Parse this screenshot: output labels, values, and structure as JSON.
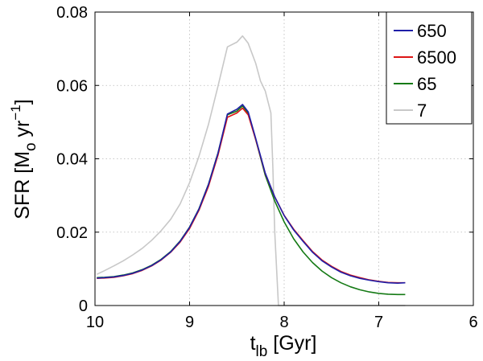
{
  "chart_data": {
    "type": "line",
    "title": "",
    "xlabel": {
      "base": "t",
      "sub": "lb",
      "rest": " [Gyr]"
    },
    "ylabel": {
      "pre": "SFR [M",
      "sub": "o",
      "mid": " yr",
      "sup": "−1",
      "post": "]"
    },
    "xlim": [
      10,
      6
    ],
    "ylim": [
      0,
      0.08
    ],
    "x_reversed": true,
    "xticks": [
      10,
      9,
      8,
      7,
      6
    ],
    "xtick_labels": [
      "10",
      "9",
      "8",
      "7",
      "6"
    ],
    "yticks": [
      0,
      0.02,
      0.04,
      0.06,
      0.08
    ],
    "ytick_labels": [
      "0",
      "0.02",
      "0.04",
      "0.06",
      "0.08"
    ],
    "grid": true,
    "legend_position": "top-right",
    "series": [
      {
        "name": "650",
        "color": "#1f1fa8",
        "x": [
          9.98,
          9.9,
          9.8,
          9.7,
          9.6,
          9.5,
          9.4,
          9.3,
          9.2,
          9.1,
          9.0,
          8.9,
          8.8,
          8.7,
          8.6,
          8.5,
          8.44,
          8.38,
          8.3,
          8.2,
          8.1,
          8.0,
          7.9,
          7.8,
          7.7,
          7.6,
          7.5,
          7.4,
          7.3,
          7.2,
          7.1,
          7.0,
          6.9,
          6.8,
          6.72
        ],
        "y": [
          0.0075,
          0.0076,
          0.0078,
          0.0082,
          0.0088,
          0.0097,
          0.0109,
          0.0125,
          0.0146,
          0.0175,
          0.0213,
          0.0263,
          0.033,
          0.0415,
          0.0522,
          0.0535,
          0.0548,
          0.0528,
          0.0455,
          0.0361,
          0.0296,
          0.0245,
          0.0206,
          0.0175,
          0.0145,
          0.0122,
          0.0105,
          0.0091,
          0.0081,
          0.0074,
          0.0069,
          0.0065,
          0.0062,
          0.0061,
          0.0062
        ]
      },
      {
        "name": "6500",
        "color": "#dd1515",
        "x": [
          9.98,
          9.9,
          9.8,
          9.7,
          9.6,
          9.5,
          9.4,
          9.3,
          9.2,
          9.1,
          9.0,
          8.9,
          8.8,
          8.7,
          8.6,
          8.5,
          8.44,
          8.38,
          8.3,
          8.2,
          8.1,
          8.0,
          7.9,
          7.8,
          7.7,
          7.6,
          7.5,
          7.4,
          7.3,
          7.2,
          7.1,
          7.0,
          6.9,
          6.8,
          6.72
        ],
        "y": [
          0.0074,
          0.0075,
          0.0077,
          0.0081,
          0.0087,
          0.0096,
          0.0108,
          0.0124,
          0.0145,
          0.0173,
          0.021,
          0.026,
          0.0325,
          0.041,
          0.0513,
          0.0525,
          0.0538,
          0.052,
          0.0452,
          0.036,
          0.0296,
          0.0246,
          0.0208,
          0.0177,
          0.0147,
          0.0124,
          0.0107,
          0.0093,
          0.0083,
          0.0076,
          0.007,
          0.0066,
          0.0063,
          0.0062,
          0.0062
        ]
      },
      {
        "name": "65",
        "color": "#157a15",
        "x": [
          9.98,
          9.9,
          9.8,
          9.7,
          9.6,
          9.5,
          9.4,
          9.3,
          9.2,
          9.1,
          9.0,
          8.9,
          8.8,
          8.7,
          8.6,
          8.5,
          8.44,
          8.38,
          8.3,
          8.2,
          8.1,
          8.0,
          7.9,
          7.8,
          7.7,
          7.6,
          7.5,
          7.4,
          7.3,
          7.2,
          7.1,
          7.0,
          6.9,
          6.8,
          6.72
        ],
        "y": [
          0.0076,
          0.0077,
          0.0079,
          0.0083,
          0.0089,
          0.0098,
          0.011,
          0.0126,
          0.0147,
          0.0176,
          0.0214,
          0.0264,
          0.0331,
          0.0416,
          0.052,
          0.053,
          0.0544,
          0.0524,
          0.0452,
          0.0355,
          0.0285,
          0.0228,
          0.0182,
          0.0146,
          0.0117,
          0.0094,
          0.0076,
          0.0062,
          0.0051,
          0.0043,
          0.0037,
          0.0033,
          0.0031,
          0.003,
          0.003
        ]
      },
      {
        "name": "7",
        "color": "#c8c8c8",
        "x": [
          9.98,
          9.9,
          9.8,
          9.7,
          9.6,
          9.5,
          9.4,
          9.3,
          9.2,
          9.1,
          9.0,
          8.9,
          8.8,
          8.7,
          8.6,
          8.5,
          8.44,
          8.38,
          8.3,
          8.25,
          8.2,
          8.14,
          8.12,
          8.1,
          8.06,
          8.0,
          7.8,
          7.6,
          7.4,
          7.2,
          7.0,
          6.9,
          6.8,
          6.72
        ],
        "y": [
          0.0085,
          0.0095,
          0.0108,
          0.0122,
          0.0138,
          0.0156,
          0.0178,
          0.0204,
          0.0235,
          0.0277,
          0.0335,
          0.0407,
          0.0494,
          0.0598,
          0.0705,
          0.0718,
          0.0735,
          0.0715,
          0.066,
          0.0612,
          0.0585,
          0.0525,
          0.038,
          0.02,
          0.0,
          0.0,
          0.0,
          0.0,
          0.0,
          0.0,
          0.0,
          0.0,
          0.0,
          0.0
        ]
      }
    ]
  }
}
